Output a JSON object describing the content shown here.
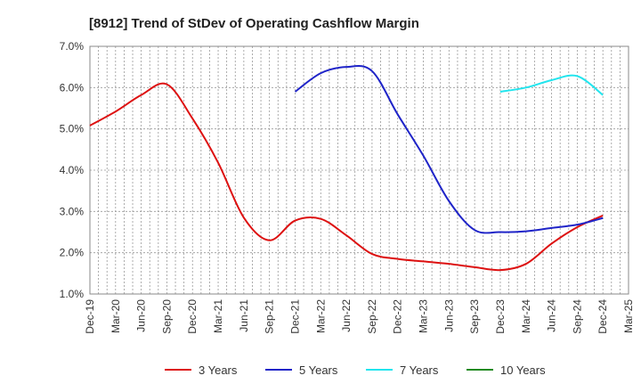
{
  "chart_data": {
    "type": "line",
    "title": "[8912]  Trend of StDev of Operating Cashflow Margin",
    "xlabel": "",
    "ylabel": "",
    "ylim": [
      1.0,
      7.0
    ],
    "y_ticks": [
      "1.0%",
      "2.0%",
      "3.0%",
      "4.0%",
      "5.0%",
      "6.0%",
      "7.0%"
    ],
    "y_tick_values": [
      1,
      2,
      3,
      4,
      5,
      6,
      7
    ],
    "categories": [
      "Dec-19",
      "Mar-20",
      "Jun-20",
      "Sep-20",
      "Dec-20",
      "Mar-21",
      "Jun-21",
      "Sep-21",
      "Dec-21",
      "Mar-22",
      "Jun-22",
      "Sep-22",
      "Dec-22",
      "Mar-23",
      "Jun-23",
      "Sep-23",
      "Dec-23",
      "Mar-24",
      "Jun-24",
      "Sep-24",
      "Dec-24",
      "Mar-25"
    ],
    "grid": true,
    "legend_position": "bottom",
    "series": [
      {
        "name": "3 Years",
        "color": "#dd1111",
        "values": [
          5.08,
          5.42,
          5.82,
          6.08,
          5.25,
          4.18,
          2.85,
          2.3,
          2.78,
          2.82,
          2.42,
          1.97,
          1.85,
          1.79,
          1.73,
          1.65,
          1.58,
          1.73,
          2.22,
          2.62,
          2.9,
          null
        ]
      },
      {
        "name": "5 Years",
        "color": "#1f24c8",
        "values": [
          null,
          null,
          null,
          null,
          null,
          null,
          null,
          null,
          5.9,
          6.35,
          6.5,
          6.4,
          5.35,
          4.35,
          3.25,
          2.55,
          2.5,
          2.52,
          2.6,
          2.68,
          2.84,
          null
        ]
      },
      {
        "name": "7 Years",
        "color": "#22e5ee",
        "values": [
          null,
          null,
          null,
          null,
          null,
          null,
          null,
          null,
          null,
          null,
          null,
          null,
          null,
          null,
          null,
          null,
          5.9,
          6.0,
          6.18,
          6.28,
          5.82,
          null
        ]
      },
      {
        "name": "10 Years",
        "color": "#228b22",
        "values": [
          null,
          null,
          null,
          null,
          null,
          null,
          null,
          null,
          null,
          null,
          null,
          null,
          null,
          null,
          null,
          null,
          null,
          null,
          null,
          null,
          null,
          null
        ]
      }
    ]
  }
}
